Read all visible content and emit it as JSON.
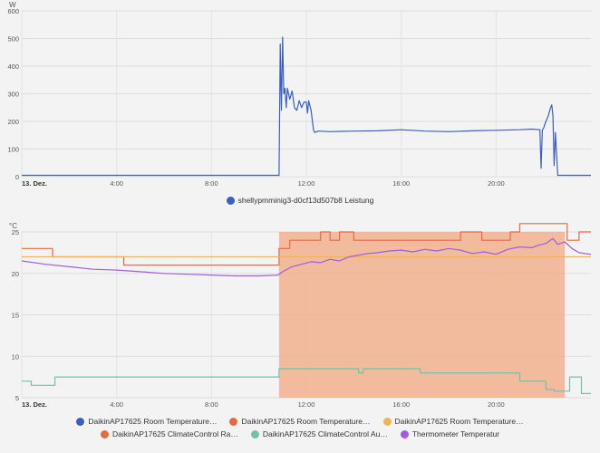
{
  "chart_data": [
    {
      "type": "line",
      "unit": "W",
      "x_domain": [
        0,
        24
      ],
      "x_ticks": [
        {
          "t": 0,
          "label": "13. Dez.",
          "bold": true
        },
        {
          "t": 4,
          "label": "4:00"
        },
        {
          "t": 8,
          "label": "8:00"
        },
        {
          "t": 12,
          "label": "12:00"
        },
        {
          "t": 16,
          "label": "16:00"
        },
        {
          "t": 20,
          "label": "20:00"
        }
      ],
      "ylim": [
        0,
        600
      ],
      "y_ticks": [
        0,
        100,
        200,
        300,
        400,
        500,
        600
      ],
      "grid": true,
      "legend_position": "bottom",
      "series": [
        {
          "name": "shellypmminig3-d0cf13d507b8 Leistung",
          "color": "#3b5fc0",
          "x": [
            0,
            10.85,
            10.9,
            10.95,
            11.0,
            11.05,
            11.1,
            11.15,
            11.2,
            11.3,
            11.4,
            11.5,
            11.6,
            11.7,
            11.8,
            11.9,
            12.0,
            12.05,
            12.1,
            12.2,
            12.3,
            12.35,
            12.5,
            13,
            14,
            15,
            16,
            17,
            18,
            19,
            20,
            21,
            21.5,
            21.85,
            21.9,
            21.95,
            22.0,
            22.1,
            22.2,
            22.3,
            22.35,
            22.4,
            22.45,
            22.5,
            22.6,
            23.0,
            24
          ],
          "y": [
            5,
            5,
            480,
            240,
            505,
            300,
            320,
            250,
            320,
            280,
            310,
            250,
            240,
            275,
            250,
            270,
            270,
            230,
            275,
            240,
            170,
            160,
            165,
            163,
            165,
            166,
            170,
            165,
            163,
            166,
            168,
            170,
            172,
            170,
            30,
            170,
            175,
            200,
            220,
            250,
            260,
            220,
            40,
            160,
            5,
            5,
            5
          ]
        }
      ]
    },
    {
      "type": "line",
      "unit": "°C",
      "x_domain": [
        0,
        24
      ],
      "x_ticks": [
        {
          "t": 0,
          "label": "13. Dez.",
          "bold": true
        },
        {
          "t": 4,
          "label": "4:00"
        },
        {
          "t": 8,
          "label": "8:00"
        },
        {
          "t": 12,
          "label": "12:00"
        },
        {
          "t": 16,
          "label": "16:00"
        },
        {
          "t": 20,
          "label": "20:00"
        }
      ],
      "ylim": [
        5,
        25
      ],
      "y_ticks": [
        5,
        10,
        15,
        20,
        25
      ],
      "grid": true,
      "legend_position": "bottom",
      "series": [
        {
          "name": "DaikinAP17625 Room Temperature…",
          "color": "#3b5fc0",
          "x": [],
          "y": []
        },
        {
          "name": "DaikinAP17625 Room Temperature…",
          "color": "#e36b3f",
          "x": [
            0,
            1.3,
            1.3,
            4.3,
            4.3,
            10.85,
            10.85,
            11.3,
            11.3,
            12.6,
            12.6,
            13.0,
            13.0,
            13.4,
            13.4,
            14.0,
            14.0,
            18.5,
            18.5,
            19.4,
            19.4,
            20.6,
            20.6,
            21.0,
            21.0,
            23.0,
            23.0,
            23.5,
            23.5,
            24.0
          ],
          "y": [
            23,
            23,
            22,
            22,
            21,
            21,
            23,
            23,
            24,
            24,
            25,
            25,
            24,
            24,
            25,
            25,
            24,
            24,
            25,
            25,
            24,
            24,
            25,
            25,
            26,
            26,
            24,
            24,
            25,
            25
          ]
        },
        {
          "name": "DaikinAP17625 Room Temperature…",
          "color": "#f2b24d",
          "x": [
            0,
            24
          ],
          "y": [
            22,
            22
          ]
        },
        {
          "name": "DaikinAP17625 ClimateControl Ra…",
          "color": "#e36b3f",
          "x": [],
          "y": []
        },
        {
          "name": "DaikinAP17625 ClimateControl Au…",
          "color": "#6fc4a6",
          "x": [
            0,
            0.4,
            0.4,
            1.4,
            1.4,
            10.85,
            10.85,
            14.2,
            14.2,
            14.4,
            14.4,
            16.8,
            16.8,
            17.0,
            17.0,
            21.0,
            21.0,
            22.1,
            22.1,
            22.45,
            22.45,
            23.1,
            23.1,
            23.6,
            23.6,
            24.0
          ],
          "y": [
            7,
            7,
            6.5,
            6.5,
            7.5,
            7.5,
            8.5,
            8.5,
            8,
            8,
            8.5,
            8.5,
            8,
            8,
            8,
            8,
            7,
            7,
            6,
            6,
            5.8,
            5.8,
            7.5,
            7.5,
            5.5,
            5.5
          ]
        },
        {
          "name": "Thermometer Temperatur",
          "color": "#a05ce0",
          "x": [
            0,
            1,
            2,
            3,
            4,
            5,
            6,
            7,
            8,
            9,
            10,
            10.8,
            11.0,
            11.4,
            11.8,
            12.2,
            12.6,
            13,
            13.4,
            13.8,
            14.2,
            14.6,
            15,
            15.5,
            16,
            16.5,
            17,
            17.5,
            18,
            18.5,
            19,
            19.5,
            20,
            20.5,
            21,
            21.5,
            21.8,
            22.1,
            22.4,
            22.6,
            22.9,
            23.2,
            23.5,
            24
          ],
          "y": [
            21.5,
            21.1,
            20.8,
            20.5,
            20.4,
            20.2,
            20.0,
            19.9,
            19.8,
            19.7,
            19.7,
            19.8,
            20.2,
            20.8,
            21.1,
            21.4,
            21.3,
            21.7,
            21.5,
            22.0,
            22.2,
            22.4,
            22.5,
            22.7,
            22.8,
            22.6,
            22.9,
            22.7,
            23.0,
            22.8,
            22.4,
            22.6,
            22.3,
            22.9,
            23.2,
            23.1,
            23.4,
            23.6,
            24.2,
            23.5,
            23.8,
            23.0,
            22.5,
            22.3
          ]
        }
      ],
      "shaded_regions": [
        {
          "series_index": 3,
          "x_start": 10.85,
          "x_end": 22.9,
          "y_top": 25,
          "color": "#f2b08e"
        }
      ]
    }
  ]
}
